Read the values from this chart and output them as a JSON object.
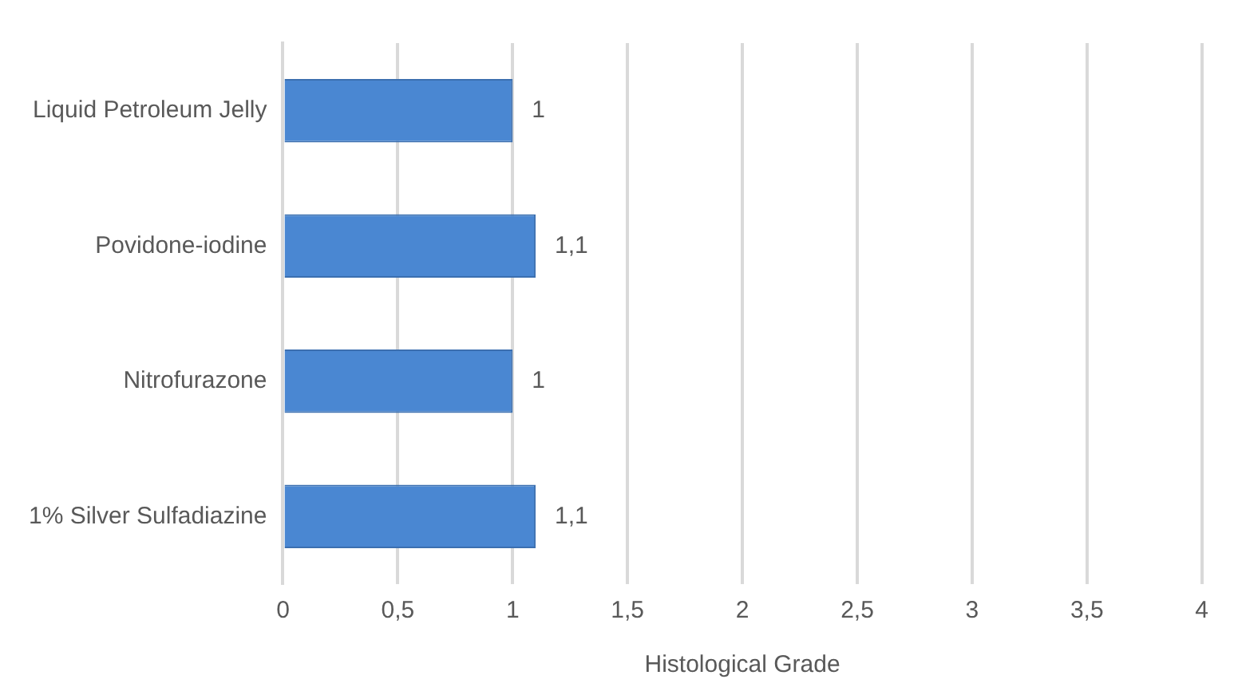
{
  "chart_data": {
    "type": "bar",
    "orientation": "horizontal",
    "xlabel": "Histological Grade",
    "categories": [
      "Liquid Petroleum Jelly",
      "Povidone-iodine",
      "Nitrofurazone",
      "1% Silver Sulfadiazine"
    ],
    "values": [
      1,
      1.1,
      1,
      1.1
    ],
    "color": "#4a87d2",
    "value_labels": [
      "1",
      "1,1",
      "1",
      "1,1"
    ],
    "xlim": [
      0,
      4
    ],
    "xticks": [
      0,
      {
        "value": 0.5,
        "label": "0,5"
      },
      1,
      {
        "value": 1.5,
        "label": "1,5"
      },
      2,
      {
        "value": 2.5,
        "label": "2,5"
      },
      3,
      {
        "value": 3.5,
        "label": "3,5"
      },
      4
    ],
    "grid": "x",
    "legend": false
  }
}
